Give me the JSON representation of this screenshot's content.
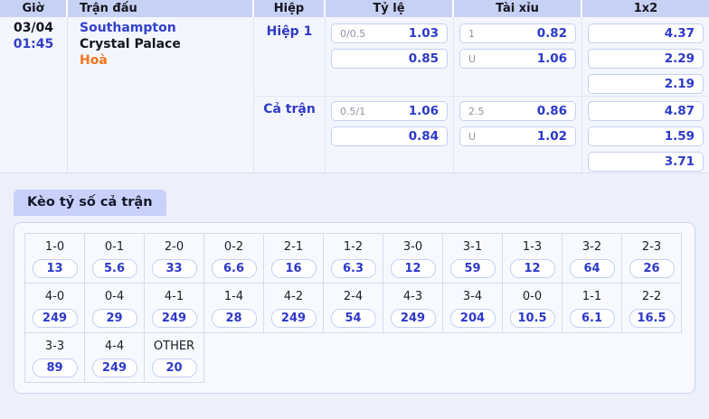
{
  "colors": {
    "accent_blue": "#2c39c8",
    "link_blue": "#3340cb",
    "draw_orange": "#f97316",
    "header_bg": "#c7d1f3",
    "tab_bg": "#c9d0fa"
  },
  "match_table": {
    "headers": {
      "time": "Giờ",
      "match": "Trận đấu",
      "half": "Hiệp",
      "rate": "Tỷ lệ",
      "over_under": "Tài xỉu",
      "one_x_two": "1x2"
    },
    "row": {
      "date": "03/04",
      "time": "01:45",
      "home_team": "Southampton",
      "away_team": "Crystal Palace",
      "prediction": "Hoà"
    },
    "sections": [
      {
        "label": "Hiệp 1",
        "handicap": {
          "line1": "0/0.5",
          "odds1": "1.03",
          "line2": "",
          "odds2": "0.85"
        },
        "over_under": {
          "line1": "1",
          "odds1": "0.82",
          "line2": "U",
          "odds2": "1.06"
        },
        "one_x_two": {
          "home": "4.37",
          "draw": "2.29",
          "away": "2.19"
        }
      },
      {
        "label": "Cả trận",
        "handicap": {
          "line1": "0.5/1",
          "odds1": "1.06",
          "line2": "",
          "odds2": "0.84"
        },
        "over_under": {
          "line1": "2.5",
          "odds1": "0.86",
          "line2": "U",
          "odds2": "1.02"
        },
        "one_x_two": {
          "home": "4.87",
          "draw": "1.59",
          "away": "3.71"
        }
      }
    ]
  },
  "score_section": {
    "tab_label": "Kèo tỷ số cả trận",
    "rows": [
      [
        {
          "score": "1-0",
          "odds": "13"
        },
        {
          "score": "0-1",
          "odds": "5.6"
        },
        {
          "score": "2-0",
          "odds": "33"
        },
        {
          "score": "0-2",
          "odds": "6.6"
        },
        {
          "score": "2-1",
          "odds": "16"
        },
        {
          "score": "1-2",
          "odds": "6.3"
        },
        {
          "score": "3-0",
          "odds": "12"
        },
        {
          "score": "3-1",
          "odds": "59"
        },
        {
          "score": "1-3",
          "odds": "12"
        },
        {
          "score": "3-2",
          "odds": "64"
        },
        {
          "score": "2-3",
          "odds": "26"
        }
      ],
      [
        {
          "score": "4-0",
          "odds": "249"
        },
        {
          "score": "0-4",
          "odds": "29"
        },
        {
          "score": "4-1",
          "odds": "249"
        },
        {
          "score": "1-4",
          "odds": "28"
        },
        {
          "score": "4-2",
          "odds": "249"
        },
        {
          "score": "2-4",
          "odds": "54"
        },
        {
          "score": "4-3",
          "odds": "249"
        },
        {
          "score": "3-4",
          "odds": "204"
        },
        {
          "score": "0-0",
          "odds": "10.5"
        },
        {
          "score": "1-1",
          "odds": "6.1"
        },
        {
          "score": "2-2",
          "odds": "16.5"
        }
      ],
      [
        {
          "score": "3-3",
          "odds": "89"
        },
        {
          "score": "4-4",
          "odds": "249"
        },
        {
          "score": "OTHER",
          "odds": "20"
        }
      ]
    ]
  }
}
